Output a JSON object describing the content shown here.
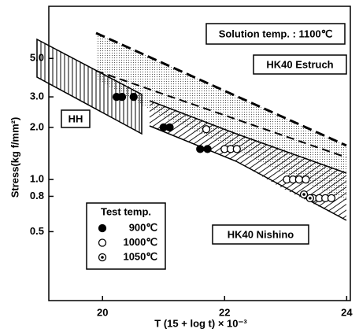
{
  "chart_data": {
    "type": "scatter",
    "annotations": [
      "Solution temp. : 1100℃",
      "HK40 Estruch",
      "HH",
      "HK40 Nishino"
    ],
    "ylabel": "Stress(kg f/mm²)",
    "xlabel": "T (15 + log t) × 10⁻³",
    "legend_title": "Test temp.",
    "xlim": [
      19.12,
      24.06
    ],
    "xticks": [
      20,
      22,
      24
    ],
    "ylim": [
      0.2,
      10
    ],
    "log_y": true,
    "yticks": [
      {
        "value": 5,
        "label": "5.0"
      },
      {
        "value": 3,
        "label": "3.0"
      },
      {
        "value": 2,
        "label": "2.0"
      },
      {
        "value": 1,
        "label": "1.0"
      },
      {
        "value": 0.8,
        "label": "0.8"
      },
      {
        "value": 0.5,
        "label": "0.5"
      }
    ],
    "series": [
      {
        "name": "900℃",
        "color": "#000",
        "marker": "filled",
        "x": [
          20.23,
          20.32,
          20.51,
          21.0,
          21.1,
          21.6,
          21.72
        ],
        "values": [
          3.0,
          3.0,
          3.0,
          2.0,
          2.0,
          1.5,
          1.5
        ]
      },
      {
        "name": "1000℃",
        "color": "#000",
        "marker": "open",
        "x": [
          21.7,
          22.0,
          22.1,
          22.2,
          23.02,
          23.12,
          23.22,
          23.33,
          23.45,
          23.55,
          23.65,
          23.75
        ],
        "values": [
          1.95,
          1.5,
          1.5,
          1.5,
          1.0,
          1.0,
          1.0,
          1.0,
          0.78,
          0.78,
          0.78,
          0.78
        ]
      },
      {
        "name": "1050℃",
        "color": "#000",
        "marker": "dotted",
        "x": [
          23.3,
          23.4
        ],
        "values": [
          0.82,
          0.78
        ]
      }
    ]
  }
}
